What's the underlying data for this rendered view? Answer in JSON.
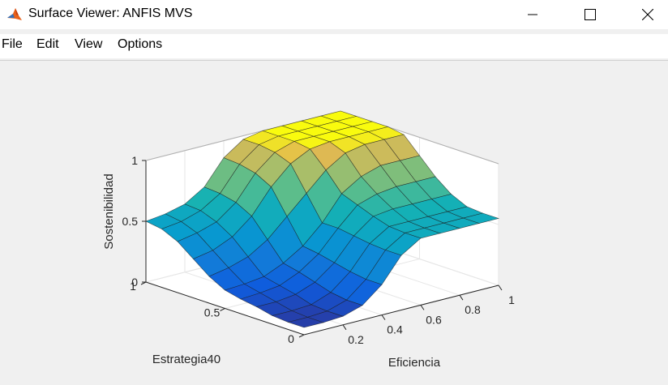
{
  "window": {
    "title": "Surface Viewer: ANFIS MVS",
    "minimize_glyph": "—",
    "maximize_glyph": "☐",
    "close_glyph": "✕"
  },
  "menu": [
    {
      "label": "File"
    },
    {
      "label": "Edit"
    },
    {
      "label": "View"
    },
    {
      "label": "Options"
    }
  ],
  "icons": {
    "app": "matlab-icon"
  },
  "colors": {
    "background": "#f0f0f0",
    "surface_low": "#1f6ff2",
    "surface_high": "#f8f61c"
  },
  "chart_data": {
    "type": "surface",
    "xlabel": "Eficiencia",
    "ylabel": "Estrategia40",
    "zlabel": "Sostenibilidad",
    "x_ticks": [
      "0.2",
      "0.4",
      "0.6",
      "0.8",
      "1"
    ],
    "y_ticks": [
      "0",
      "0.5",
      "1"
    ],
    "z_ticks": [
      "0",
      "0.5",
      "1"
    ],
    "xlim": [
      0,
      1
    ],
    "ylim": [
      0,
      1
    ],
    "zlim": [
      0,
      1
    ],
    "grid": true,
    "x": [
      0,
      0.1,
      0.2,
      0.3,
      0.4,
      0.5,
      0.6,
      0.7,
      0.8,
      0.9,
      1.0
    ],
    "y": [
      0,
      0.1,
      0.2,
      0.3,
      0.4,
      0.5,
      0.6,
      0.7,
      0.8,
      0.9,
      1.0
    ],
    "z": [
      [
        0.06,
        0.06,
        0.07,
        0.12,
        0.25,
        0.45,
        0.55,
        0.55,
        0.55,
        0.55,
        0.55
      ],
      [
        0.06,
        0.06,
        0.07,
        0.12,
        0.25,
        0.45,
        0.55,
        0.55,
        0.55,
        0.55,
        0.55
      ],
      [
        0.07,
        0.07,
        0.08,
        0.14,
        0.27,
        0.46,
        0.56,
        0.56,
        0.56,
        0.56,
        0.56
      ],
      [
        0.1,
        0.1,
        0.12,
        0.18,
        0.3,
        0.48,
        0.6,
        0.62,
        0.62,
        0.62,
        0.62
      ],
      [
        0.12,
        0.13,
        0.15,
        0.22,
        0.33,
        0.5,
        0.65,
        0.7,
        0.72,
        0.72,
        0.72
      ],
      [
        0.15,
        0.16,
        0.18,
        0.25,
        0.35,
        0.5,
        0.7,
        0.8,
        0.85,
        0.85,
        0.85
      ],
      [
        0.22,
        0.25,
        0.3,
        0.4,
        0.55,
        0.7,
        0.85,
        0.95,
        0.98,
        0.98,
        0.98
      ],
      [
        0.32,
        0.35,
        0.42,
        0.55,
        0.75,
        0.9,
        0.98,
        1.0,
        1.0,
        1.0,
        1.0
      ],
      [
        0.42,
        0.45,
        0.5,
        0.62,
        0.82,
        0.95,
        1.0,
        1.0,
        1.0,
        1.0,
        1.0
      ],
      [
        0.48,
        0.5,
        0.55,
        0.65,
        0.85,
        0.97,
        1.0,
        1.0,
        1.0,
        1.0,
        1.0
      ],
      [
        0.5,
        0.52,
        0.56,
        0.66,
        0.86,
        0.97,
        1.0,
        1.0,
        1.0,
        1.0,
        1.0
      ]
    ]
  }
}
